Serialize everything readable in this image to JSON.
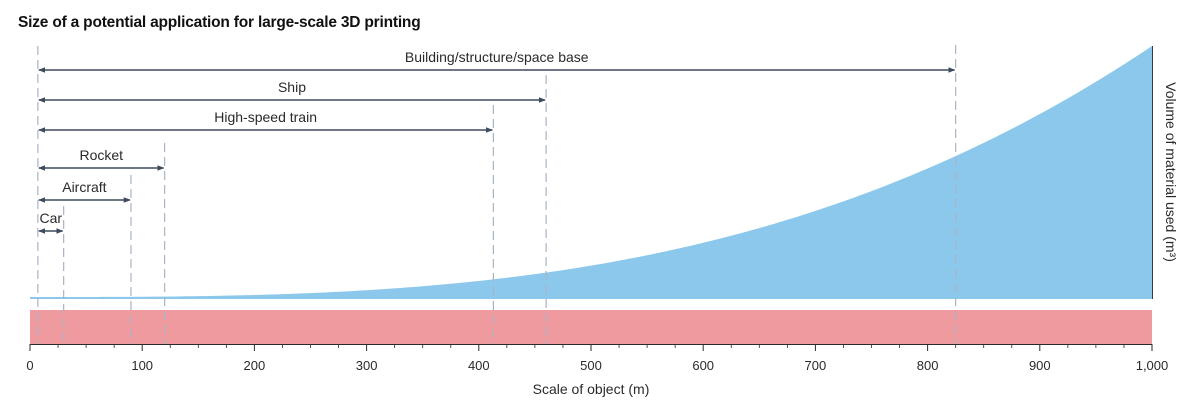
{
  "chart_data": {
    "type": "area",
    "title": "Size of a potential application for large-scale 3D printing",
    "xlabel": "Scale of object (m)",
    "ylabel": "Volume of material used (m³)",
    "xlim": [
      0,
      1000
    ],
    "x_ticks": [
      0,
      100,
      200,
      300,
      400,
      500,
      600,
      700,
      800,
      900,
      1000
    ],
    "x_tick_labels": [
      "0",
      "100",
      "200",
      "300",
      "400",
      "500",
      "600",
      "700",
      "800",
      "900",
      "1,000"
    ],
    "curve": {
      "shape": "cubic",
      "x": [
        0,
        100,
        200,
        300,
        400,
        500,
        600,
        700,
        800,
        900,
        1000
      ],
      "relative_volume": [
        0.0,
        0.001,
        0.008,
        0.027,
        0.064,
        0.125,
        0.216,
        0.343,
        0.512,
        0.729,
        1.0
      ],
      "color": "#8cc8ec"
    },
    "band": {
      "color": "#ef9a9e"
    },
    "ranges": [
      {
        "label": "Building/structure/space base",
        "start": 7,
        "end": 825
      },
      {
        "label": "Ship",
        "start": 7,
        "end": 460
      },
      {
        "label": "High-speed train",
        "start": 7,
        "end": 413
      },
      {
        "label": "Rocket",
        "start": 7,
        "end": 120
      },
      {
        "label": "Aircraft",
        "start": 7,
        "end": 90
      },
      {
        "label": "Car",
        "start": 7,
        "end": 30
      }
    ],
    "grid": false,
    "colors": {
      "arrow": "#3e4a5e",
      "guide_line": "#a9b4c4",
      "axis": "#2a2a2a"
    }
  }
}
